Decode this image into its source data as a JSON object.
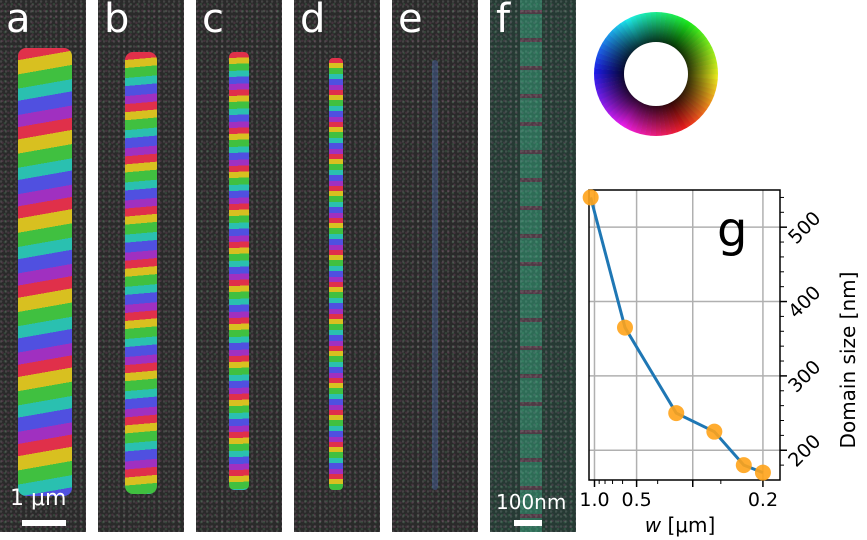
{
  "panels": [
    {
      "label": "a",
      "scale_text": "1  μm"
    },
    {
      "label": "b"
    },
    {
      "label": "c"
    },
    {
      "label": "d"
    },
    {
      "label": "e"
    },
    {
      "label": "f",
      "scale_text": "100nm"
    }
  ],
  "colors": {
    "line": "#1f77b4",
    "marker": "#ffa31a",
    "grid": "#b0b0b0",
    "panel_bg": "#2a2a2a"
  },
  "chart_data": {
    "type": "line",
    "panel_label": "g",
    "xlabel": "w [μm]",
    "ylabel": "Domain size [nm]",
    "x_scale": "reciprocal",
    "x_ticks": [
      1.0,
      0.5,
      0.3,
      0.2
    ],
    "x_tick_labels": [
      "1.0",
      "0.5",
      "0.2"
    ],
    "y_ticks": [
      200,
      300,
      400,
      500
    ],
    "y_tick_labels": [
      "200",
      "300",
      "400",
      "500"
    ],
    "ylim": [
      160,
      550
    ],
    "grid": true,
    "y_axis_side": "right",
    "x": [
      1.1,
      0.58,
      0.34,
      0.26,
      0.22,
      0.2
    ],
    "y": [
      540,
      365,
      250,
      225,
      180,
      170
    ]
  }
}
